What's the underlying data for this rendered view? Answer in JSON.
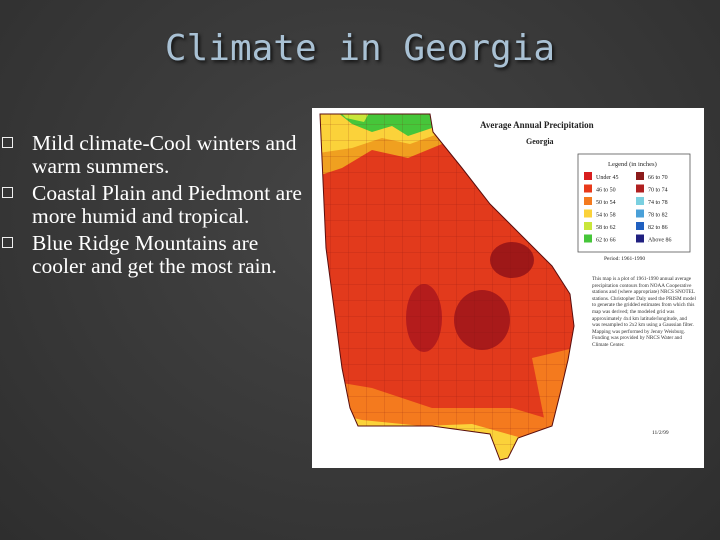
{
  "slide": {
    "title": "Climate in Georgia",
    "bullets": [
      "Mild climate-Cool winters and warm summers.",
      "Coastal Plain and Piedmont are more humid and tropical.",
      "Blue Ridge Mountains are cooler and get the most rain."
    ]
  },
  "map": {
    "heading": "Average Annual Precipitation",
    "subheading": "Georgia",
    "legend_title": "Legend (in inches)",
    "legend": [
      {
        "label": "Under 45",
        "color": "#d81e1e"
      },
      {
        "label": "46 to 50",
        "color": "#e83a1a"
      },
      {
        "label": "50 to 54",
        "color": "#f47a1e"
      },
      {
        "label": "54 to 58",
        "color": "#fbd23a"
      },
      {
        "label": "58 to 62",
        "color": "#c9e63a"
      },
      {
        "label": "62 to 66",
        "color": "#46c63a"
      },
      {
        "label": "66 to 70",
        "color": "#8b1a1a"
      },
      {
        "label": "70 to 74",
        "color": "#b02020"
      },
      {
        "label": "74 to 78",
        "color": "#7ad0e0"
      },
      {
        "label": "78 to 82",
        "color": "#4aa0d8"
      },
      {
        "label": "82 to 86",
        "color": "#2060c0"
      },
      {
        "label": "Above 86",
        "color": "#202080"
      }
    ],
    "period": "Period: 1961-1990",
    "description": "This map is a plot of 1961-1990 annual average precipitation contours from NOAA Cooperative stations and (where appropriate) NRCS SNOTEL stations. Christopher Daly used the PRISM model to generate the gridded estimates from which this map was derived; the modeled grid was approximately 4x4 km latitude/longitude, and was resampled to 2x2 km using a Gaussian filter. Mapping was performed by Jenny Weisburg. Funding was provided by NRCS Water and Climate Center.",
    "date": "11/2/99"
  }
}
